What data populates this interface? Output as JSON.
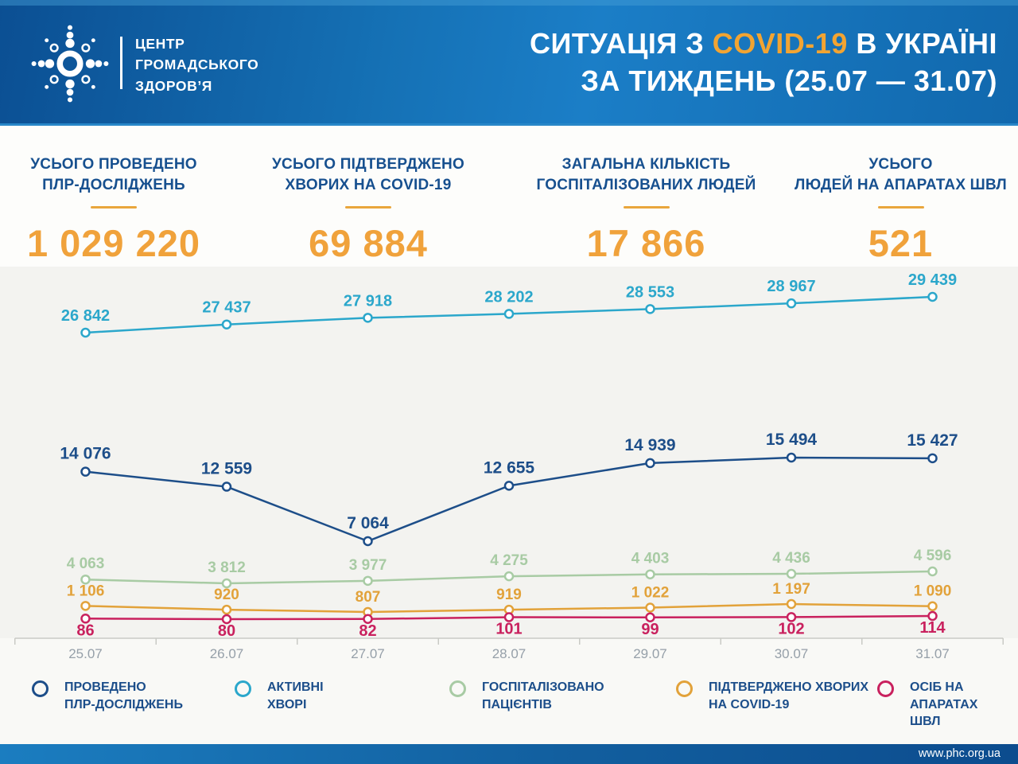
{
  "header": {
    "org_name": {
      "l1": "ЦЕНТР",
      "l2": "ГРОМАДСЬКОГО",
      "l3": "ЗДОРОВ’Я"
    },
    "title": {
      "prefix": "СИТУАЦІЯ З ",
      "highlight": "COVID-19",
      "suffix": " В УКРАЇНІ",
      "line2": "ЗА ТИЖДЕНЬ (25.07 — 31.07)"
    }
  },
  "stats": [
    {
      "l1": "УСЬОГО ПРОВЕДЕНО",
      "l2": "ПЛР-ДОСЛІДЖЕНЬ",
      "value": "1 029 220"
    },
    {
      "l1": "УСЬОГО ПІДТВЕРДЖЕНО",
      "l2": "ХВОРИХ НА COVID-19",
      "value": "69 884"
    },
    {
      "l1": "ЗАГАЛЬНА КІЛЬКІСТЬ",
      "l2": "ГОСПІТАЛІЗОВАНИХ ЛЮДЕЙ",
      "value": "17 866"
    },
    {
      "l1": "УСЬОГО",
      "l2": "ЛЮДЕЙ НА АПАРАТАХ ШВЛ",
      "value": "521"
    }
  ],
  "chart_data": {
    "type": "line",
    "title": "Ситуація з COVID-19 в Україні за тиждень (25.07 — 31.07)",
    "categories": [
      "25.07",
      "26.07",
      "27.07",
      "28.07",
      "29.07",
      "30.07",
      "31.07"
    ],
    "series": [
      {
        "name": "ПРОВЕДЕНО ПЛР-ДОСЛІДЖЕНЬ",
        "color": "#1d4e89",
        "values": [
          14076,
          12559,
          7064,
          12655,
          14939,
          15494,
          15427
        ]
      },
      {
        "name": "АКТИВНІ ХВОРІ",
        "color": "#2ba7cb",
        "values": [
          26842,
          27437,
          27918,
          28202,
          28553,
          28967,
          29439
        ]
      },
      {
        "name": "ГОСПІТАЛІЗОВАНО ПАЦІЄНТІВ",
        "color": "#a8cba4",
        "values": [
          4063,
          3812,
          3977,
          4275,
          4403,
          4436,
          4596
        ]
      },
      {
        "name": "ПІДТВЕРДЖЕНО ХВОРИХ НА COVID-19",
        "color": "#e2a23a",
        "values": [
          1106,
          920,
          807,
          919,
          1022,
          1197,
          1090
        ]
      },
      {
        "name": "ОСІБ НА АПАРАТАХ ШВЛ",
        "color": "#c9215e",
        "values": [
          86,
          80,
          82,
          101,
          99,
          102,
          114
        ]
      }
    ],
    "legend_position": "bottom",
    "grid": false,
    "xlabel": "",
    "ylabel": ""
  },
  "legend": [
    {
      "l1": "ПРОВЕДЕНО",
      "l2": "ПЛР-ДОСЛІДЖЕНЬ",
      "color": "#1d4e89"
    },
    {
      "l1": "АКТИВНІ",
      "l2": "ХВОРІ",
      "color": "#2ba7cb"
    },
    {
      "l1": "ГОСПІТАЛІЗОВАНО",
      "l2": "ПАЦІЄНТІВ",
      "color": "#a8cba4"
    },
    {
      "l1": "ПІДТВЕРДЖЕНО ХВОРИХ",
      "l2": "НА COVID-19",
      "color": "#e2a23a"
    },
    {
      "l1": "ОСІБ НА АПАРАТАХ",
      "l2": "ШВЛ",
      "color": "#c9215e"
    }
  ],
  "footer": {
    "url": "www.phc.org.ua"
  },
  "colors": {
    "accent_orange": "#f0a23b",
    "header_blue": "#1571b5",
    "label_navy": "#17508f",
    "axis_gray": "#c9cac5",
    "date_gray": "#96a0a9"
  }
}
